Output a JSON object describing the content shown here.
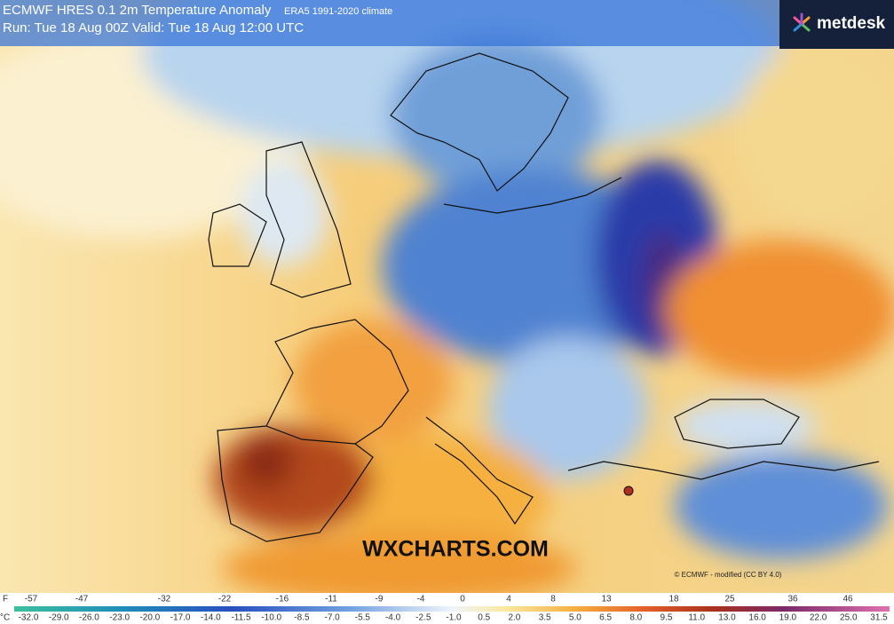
{
  "header": {
    "title": "ECMWF HRES 0.1 2m Temperature Anomaly",
    "climate": "ERA5 1991-2020 climate",
    "run": "Run: Tue 18 Aug 00Z Valid: Tue 18 Aug 12:00 UTC"
  },
  "logo": "metdesk",
  "watermark": "WXCHARTS.COM",
  "credit": "© ECMWF - modified (CC BY 4.0)",
  "legend": {
    "f_unit": "F",
    "f_labels": [
      "-57",
      "-47",
      "-32",
      "-22",
      "-16",
      "-11",
      "-9",
      "-4",
      "0",
      "4",
      "8",
      "13",
      "18",
      "25",
      "36",
      "46"
    ],
    "c_unit": "°C",
    "c_labels": [
      "-32.0",
      "-29.0",
      "-26.0",
      "-23.0",
      "-20.0",
      "-17.0",
      "-14.0",
      "-11.5",
      "-10.0",
      "-8.5",
      "-7.0",
      "-5.5",
      "-4.0",
      "-2.5",
      "-1.0",
      "0.5",
      "2.0",
      "3.5",
      "5.0",
      "6.5",
      "8.0",
      "9.5",
      "11.0",
      "13.0",
      "16.0",
      "19.0",
      "22.0",
      "25.0",
      "31.5"
    ]
  }
}
